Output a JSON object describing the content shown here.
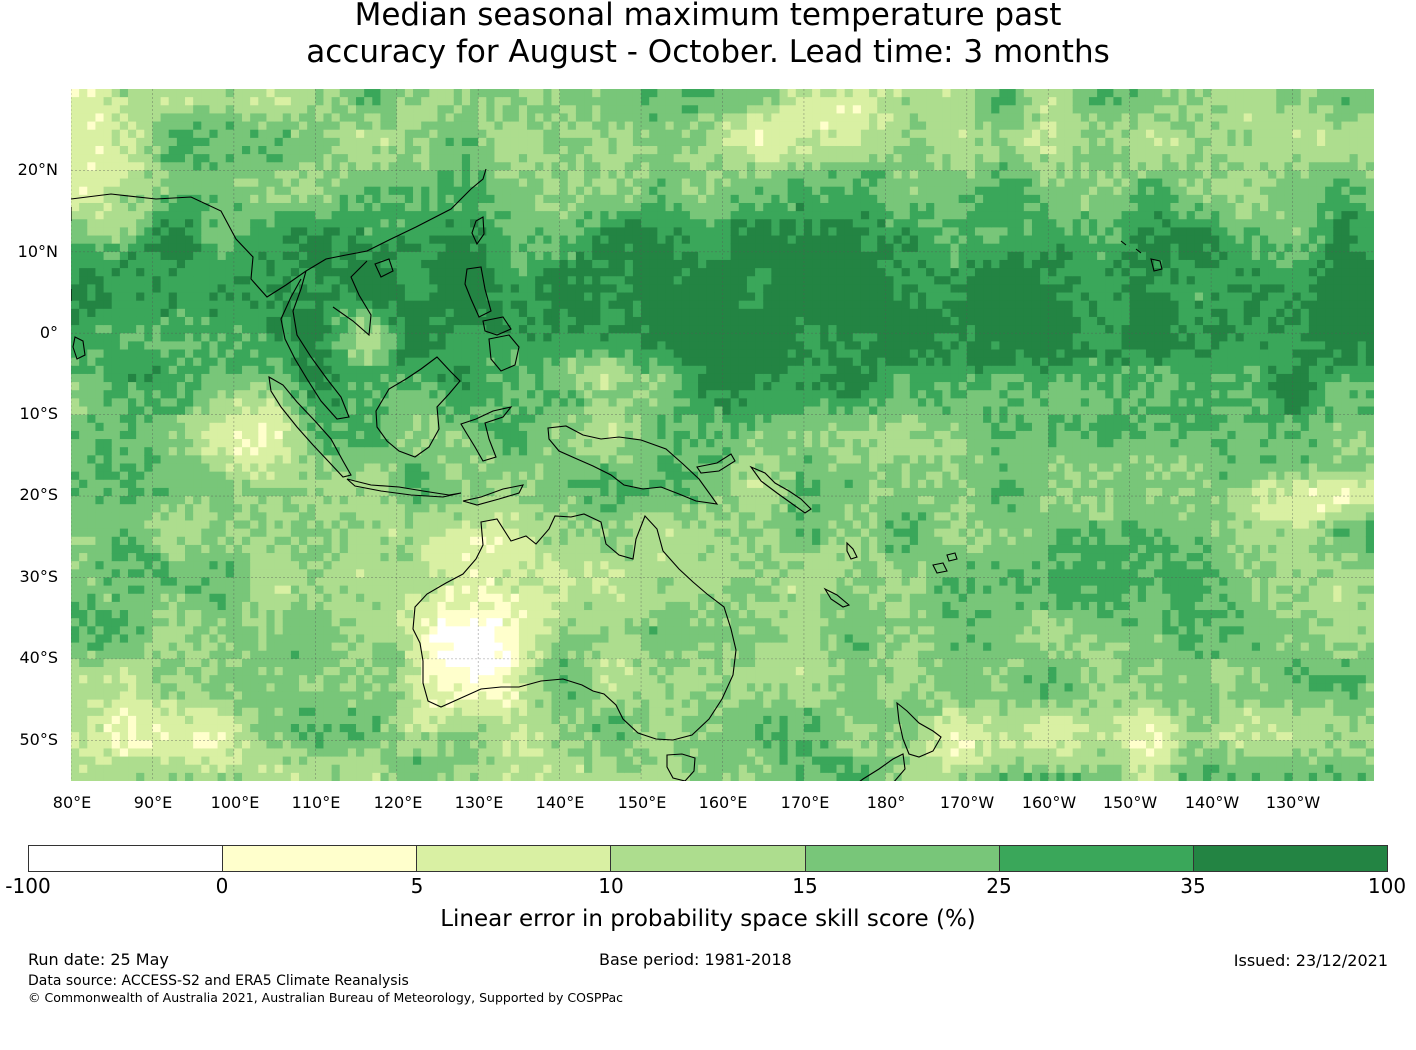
{
  "title": {
    "line1": "Median seasonal maximum temperature past",
    "line2": "accuracy for August - October. Lead time: 3 months"
  },
  "map": {
    "lat_labels": [
      "20°N",
      "10°N",
      "0°",
      "10°S",
      "20°S",
      "30°S",
      "40°S",
      "50°S"
    ],
    "lon_labels": [
      "80°E",
      "90°E",
      "100°E",
      "110°E",
      "120°E",
      "130°E",
      "140°E",
      "150°E",
      "160°E",
      "170°E",
      "180°",
      "170°W",
      "160°W",
      "150°W",
      "140°W",
      "130°W"
    ],
    "lat_values": [
      20,
      10,
      0,
      -10,
      -20,
      -30,
      -40,
      -50
    ],
    "lon_values": [
      80,
      90,
      100,
      110,
      120,
      130,
      140,
      150,
      160,
      170,
      180,
      190,
      200,
      210,
      220,
      230
    ],
    "extent": {
      "lon_min": 80,
      "lon_max": 240,
      "lat_min": -55,
      "lat_max": 30
    },
    "coastline_color": "#000000",
    "gridline_color": "#555555"
  },
  "colorbar": {
    "ticks": [
      "-100",
      "0",
      "5",
      "10",
      "15",
      "25",
      "35",
      "100"
    ],
    "colors": [
      "#ffffff",
      "#ffffcc",
      "#d9f0a3",
      "#addd8e",
      "#78c679",
      "#3aa75a",
      "#238443"
    ],
    "label": "Linear error in probability space skill score (%)"
  },
  "footer": {
    "run_date": "Run date: 25 May",
    "base_period": "Base period: 1981-2018",
    "issued": "Issued: 23/12/2021",
    "data_source": "Data source: ACCESS-S2 and ERA5 Climate Reanalysis",
    "copyright": "© Commonwealth of Australia 2021, Australian Bureau of Meteorology, Supported by COSPPac"
  }
}
